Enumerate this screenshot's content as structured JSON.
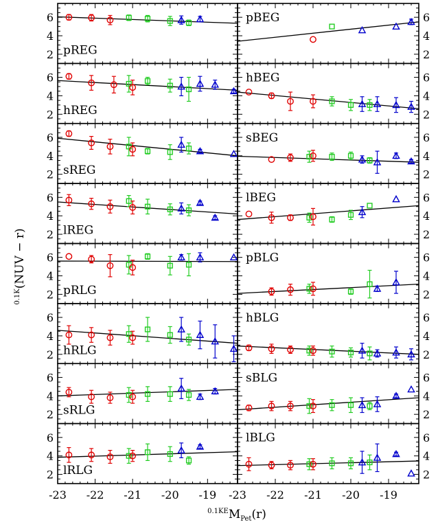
{
  "figure": {
    "ylabel_text": "(NUV − r)",
    "ylabel_sup": "0.1K",
    "xlabel_text": "(r)",
    "xlabel_pre": "0.1KE",
    "xlabel_M": "M",
    "xlabel_sub": "Pet"
  },
  "colors": {
    "red": "#e00000",
    "green": "#22cc22",
    "blue": "#0000cc",
    "line": "#000000"
  },
  "chart_data": [
    {
      "type": "scatter",
      "label": "pREG",
      "xlim": [
        -23,
        -18.2
      ],
      "ylim": [
        1,
        7.5
      ],
      "fit": [
        [
          -23,
          6.05
        ],
        [
          -18.2,
          5.35
        ]
      ],
      "points": [
        [
          -22.7,
          6.0,
          0.3,
          "red"
        ],
        [
          -22.1,
          5.95,
          0.35,
          "red"
        ],
        [
          -21.6,
          5.7,
          0.5,
          "red"
        ],
        [
          -21.1,
          5.95,
          0.3,
          "green"
        ],
        [
          -20.6,
          5.85,
          0.35,
          "green"
        ],
        [
          -20.0,
          5.6,
          0.5,
          "green"
        ],
        [
          -19.7,
          5.7,
          0.45,
          "blue"
        ],
        [
          -19.5,
          5.4,
          0.3,
          "green"
        ],
        [
          -19.2,
          5.8,
          0.3,
          "blue"
        ]
      ]
    },
    {
      "type": "scatter",
      "label": "pBEG",
      "xlim": [
        -23,
        -18.2
      ],
      "ylim": [
        1,
        7.5
      ],
      "fit": [
        [
          -23,
          3.4
        ],
        [
          -18.2,
          5.5
        ]
      ],
      "points": [
        [
          -21.0,
          3.6,
          0.1,
          "red"
        ],
        [
          -20.5,
          5.0,
          0.1,
          "green"
        ],
        [
          -19.7,
          4.6,
          0.1,
          "blue"
        ],
        [
          -18.8,
          5.0,
          0.1,
          "blue"
        ],
        [
          -18.4,
          5.5,
          0.3,
          "blue"
        ]
      ]
    },
    {
      "type": "scatter",
      "label": "hREG",
      "xlim": [
        -23,
        -18.2
      ],
      "ylim": [
        1,
        7.5
      ],
      "fit": [
        [
          -23,
          5.65
        ],
        [
          -18.2,
          4.6
        ]
      ],
      "points": [
        [
          -22.7,
          6.1,
          0.3,
          "red"
        ],
        [
          -22.1,
          5.4,
          0.8,
          "red"
        ],
        [
          -21.5,
          5.2,
          0.9,
          "red"
        ],
        [
          -21.1,
          5.3,
          0.9,
          "green"
        ],
        [
          -21.0,
          4.9,
          0.8,
          "red"
        ],
        [
          -20.6,
          5.6,
          0.4,
          "green"
        ],
        [
          -20.0,
          5.1,
          0.7,
          "green"
        ],
        [
          -19.7,
          5.0,
          1.0,
          "blue"
        ],
        [
          -19.5,
          4.7,
          1.3,
          "green"
        ],
        [
          -19.2,
          5.3,
          0.8,
          "blue"
        ],
        [
          -18.8,
          5.2,
          0.5,
          "blue"
        ],
        [
          -18.3,
          4.5,
          0.2,
          "blue"
        ]
      ]
    },
    {
      "type": "scatter",
      "label": "hBEG",
      "xlim": [
        -23,
        -18.2
      ],
      "ylim": [
        1,
        7.5
      ],
      "fit": [
        [
          -23,
          4.4
        ],
        [
          -18.2,
          2.6
        ]
      ],
      "points": [
        [
          -22.7,
          4.4,
          0.1,
          "red"
        ],
        [
          -22.1,
          4.0,
          0.3,
          "red"
        ],
        [
          -21.6,
          3.4,
          1.0,
          "red"
        ],
        [
          -21.0,
          3.4,
          0.7,
          "red"
        ],
        [
          -20.5,
          3.4,
          0.5,
          "green"
        ],
        [
          -20.0,
          3.0,
          0.6,
          "green"
        ],
        [
          -19.7,
          3.1,
          0.8,
          "blue"
        ],
        [
          -19.5,
          3.0,
          0.6,
          "green"
        ],
        [
          -19.3,
          3.1,
          0.8,
          "blue"
        ],
        [
          -18.8,
          3.0,
          0.8,
          "blue"
        ],
        [
          -18.4,
          2.8,
          0.6,
          "blue"
        ]
      ]
    },
    {
      "type": "scatter",
      "label": "sREG",
      "xlim": [
        -23,
        -18.2
      ],
      "ylim": [
        1,
        7.5
      ],
      "fit": [
        [
          -23,
          5.9
        ],
        [
          -18.2,
          4.0
        ]
      ],
      "points": [
        [
          -22.7,
          6.4,
          0.3,
          "red"
        ],
        [
          -22.1,
          5.4,
          0.7,
          "red"
        ],
        [
          -21.6,
          5.0,
          0.8,
          "red"
        ],
        [
          -21.1,
          5.0,
          1.0,
          "green"
        ],
        [
          -21.0,
          4.7,
          0.7,
          "red"
        ],
        [
          -20.6,
          4.5,
          0.3,
          "green"
        ],
        [
          -20.0,
          4.4,
          0.8,
          "green"
        ],
        [
          -19.7,
          5.2,
          0.8,
          "blue"
        ],
        [
          -19.5,
          4.8,
          0.6,
          "green"
        ],
        [
          -19.2,
          4.5,
          0.2,
          "blue"
        ],
        [
          -18.3,
          4.2,
          0.1,
          "blue"
        ]
      ]
    },
    {
      "type": "scatter",
      "label": "sBEG",
      "xlim": [
        -23,
        -18.2
      ],
      "ylim": [
        1,
        7.5
      ],
      "fit": [
        [
          -23,
          3.95
        ],
        [
          -18.2,
          3.3
        ]
      ],
      "points": [
        [
          -22.1,
          3.6,
          0.1,
          "red"
        ],
        [
          -21.6,
          3.8,
          0.4,
          "red"
        ],
        [
          -21.1,
          3.9,
          0.6,
          "green"
        ],
        [
          -21.0,
          4.0,
          0.6,
          "red"
        ],
        [
          -20.5,
          3.9,
          0.4,
          "green"
        ],
        [
          -20.0,
          4.0,
          0.4,
          "green"
        ],
        [
          -19.7,
          3.6,
          0.4,
          "blue"
        ],
        [
          -19.5,
          3.5,
          0.3,
          "green"
        ],
        [
          -19.3,
          3.3,
          1.2,
          "blue"
        ],
        [
          -18.8,
          4.0,
          0.3,
          "blue"
        ],
        [
          -18.4,
          3.4,
          0.2,
          "blue"
        ]
      ]
    },
    {
      "type": "scatter",
      "label": "lREG",
      "xlim": [
        -23,
        -18.2
      ],
      "ylim": [
        1,
        7.5
      ],
      "fit": [
        [
          -23,
          5.5
        ],
        [
          -18.2,
          4.2
        ]
      ],
      "points": [
        [
          -22.7,
          5.7,
          0.6,
          "red"
        ],
        [
          -22.1,
          5.3,
          0.6,
          "red"
        ],
        [
          -21.6,
          5.0,
          0.7,
          "red"
        ],
        [
          -21.1,
          5.6,
          0.6,
          "green"
        ],
        [
          -21.0,
          4.9,
          0.7,
          "red"
        ],
        [
          -20.6,
          5.0,
          0.8,
          "green"
        ],
        [
          -20.0,
          4.7,
          0.6,
          "green"
        ],
        [
          -19.7,
          4.8,
          0.6,
          "blue"
        ],
        [
          -19.5,
          4.6,
          0.6,
          "green"
        ],
        [
          -19.2,
          5.4,
          0.2,
          "blue"
        ],
        [
          -18.8,
          3.8,
          0.2,
          "blue"
        ]
      ]
    },
    {
      "type": "scatter",
      "label": "lBEG",
      "xlim": [
        -23,
        -18.2
      ],
      "ylim": [
        1,
        7.5
      ],
      "fit": [
        [
          -23,
          3.6
        ],
        [
          -18.2,
          5.1
        ]
      ],
      "points": [
        [
          -22.7,
          4.2,
          0.1,
          "red"
        ],
        [
          -22.1,
          3.8,
          0.6,
          "red"
        ],
        [
          -21.6,
          3.8,
          0.3,
          "red"
        ],
        [
          -21.1,
          3.8,
          0.5,
          "green"
        ],
        [
          -21.0,
          3.9,
          0.9,
          "red"
        ],
        [
          -20.5,
          3.6,
          0.3,
          "green"
        ],
        [
          -20.0,
          4.1,
          0.5,
          "green"
        ],
        [
          -19.7,
          4.4,
          0.6,
          "blue"
        ],
        [
          -19.5,
          5.1,
          0.1,
          "green"
        ],
        [
          -18.8,
          5.8,
          0.1,
          "blue"
        ]
      ]
    },
    {
      "type": "scatter",
      "label": "pRLG",
      "xlim": [
        -23,
        -18.2
      ],
      "ylim": [
        1,
        7.5
      ],
      "fit": [
        [
          -23,
          5.6
        ],
        [
          -18.2,
          5.55
        ]
      ],
      "points": [
        [
          -22.7,
          6.1,
          0.1,
          "red"
        ],
        [
          -22.1,
          5.8,
          0.4,
          "red"
        ],
        [
          -21.6,
          5.1,
          1.2,
          "red"
        ],
        [
          -21.1,
          5.2,
          1.0,
          "green"
        ],
        [
          -21.0,
          4.9,
          0.8,
          "red"
        ],
        [
          -20.6,
          6.1,
          0.3,
          "green"
        ],
        [
          -20.0,
          5.1,
          1.0,
          "green"
        ],
        [
          -19.7,
          6.0,
          0.3,
          "blue"
        ],
        [
          -19.5,
          5.2,
          1.2,
          "green"
        ],
        [
          -19.2,
          6.0,
          0.5,
          "blue"
        ],
        [
          -18.3,
          6.0,
          0.1,
          "blue"
        ]
      ]
    },
    {
      "type": "scatter",
      "label": "pBLG",
      "xlim": [
        -23,
        -18.2
      ],
      "ylim": [
        1,
        7.5
      ],
      "fit": [
        [
          -23,
          2.1
        ],
        [
          -18.2,
          3.1
        ]
      ],
      "points": [
        [
          -22.1,
          2.3,
          0.4,
          "red"
        ],
        [
          -21.6,
          2.5,
          0.6,
          "red"
        ],
        [
          -21.1,
          2.6,
          0.5,
          "green"
        ],
        [
          -21.0,
          2.6,
          0.7,
          "red"
        ],
        [
          -20.0,
          2.3,
          0.3,
          "green"
        ],
        [
          -19.5,
          3.1,
          1.5,
          "green"
        ],
        [
          -19.3,
          2.6,
          0.3,
          "blue"
        ],
        [
          -18.8,
          3.3,
          1.2,
          "blue"
        ]
      ]
    },
    {
      "type": "scatter",
      "label": "hRLG",
      "xlim": [
        -23,
        -18.2
      ],
      "ylim": [
        1,
        7.5
      ],
      "fit": [
        [
          -23,
          4.6
        ],
        [
          -18.2,
          3.2
        ]
      ],
      "points": [
        [
          -22.7,
          4.1,
          1.0,
          "red"
        ],
        [
          -22.1,
          4.1,
          0.8,
          "red"
        ],
        [
          -21.6,
          3.8,
          0.8,
          "red"
        ],
        [
          -21.1,
          4.2,
          0.9,
          "green"
        ],
        [
          -21.0,
          3.8,
          0.7,
          "red"
        ],
        [
          -20.6,
          4.7,
          1.3,
          "green"
        ],
        [
          -20.0,
          4.1,
          0.9,
          "green"
        ],
        [
          -19.7,
          4.7,
          1.3,
          "blue"
        ],
        [
          -19.5,
          3.6,
          0.6,
          "green"
        ],
        [
          -19.2,
          4.1,
          1.5,
          "blue"
        ],
        [
          -18.8,
          3.4,
          1.8,
          "blue"
        ],
        [
          -18.3,
          2.6,
          1.4,
          "blue"
        ]
      ]
    },
    {
      "type": "scatter",
      "label": "hBLG",
      "xlim": [
        -23,
        -18.2
      ],
      "ylim": [
        1,
        7.5
      ],
      "fit": [
        [
          -23,
          2.9
        ],
        [
          -18.2,
          2.0
        ]
      ],
      "points": [
        [
          -22.7,
          2.7,
          0.3,
          "red"
        ],
        [
          -22.1,
          2.6,
          0.5,
          "red"
        ],
        [
          -21.6,
          2.5,
          0.4,
          "red"
        ],
        [
          -21.1,
          2.4,
          0.5,
          "green"
        ],
        [
          -21.0,
          2.4,
          0.5,
          "red"
        ],
        [
          -20.5,
          2.3,
          0.6,
          "green"
        ],
        [
          -20.0,
          2.2,
          0.5,
          "green"
        ],
        [
          -19.7,
          2.4,
          0.8,
          "blue"
        ],
        [
          -19.5,
          2.1,
          0.7,
          "green"
        ],
        [
          -19.3,
          2.1,
          0.4,
          "blue"
        ],
        [
          -18.8,
          2.2,
          0.6,
          "blue"
        ],
        [
          -18.4,
          2.0,
          0.6,
          "blue"
        ]
      ]
    },
    {
      "type": "scatter",
      "label": "sRLG",
      "xlim": [
        -23,
        -18.2
      ],
      "ylim": [
        1,
        7.5
      ],
      "fit": [
        [
          -23,
          4.0
        ],
        [
          -18.2,
          4.7
        ]
      ],
      "points": [
        [
          -22.7,
          4.4,
          0.5,
          "red"
        ],
        [
          -22.1,
          3.9,
          0.7,
          "red"
        ],
        [
          -21.6,
          3.8,
          0.6,
          "red"
        ],
        [
          -21.1,
          4.1,
          0.8,
          "green"
        ],
        [
          -21.0,
          3.9,
          0.7,
          "red"
        ],
        [
          -20.6,
          4.2,
          0.8,
          "green"
        ],
        [
          -20.0,
          4.2,
          0.8,
          "green"
        ],
        [
          -19.7,
          4.8,
          1.1,
          "blue"
        ],
        [
          -19.5,
          4.1,
          0.6,
          "green"
        ],
        [
          -19.2,
          3.9,
          0.3,
          "blue"
        ],
        [
          -18.8,
          4.5,
          0.3,
          "blue"
        ]
      ]
    },
    {
      "type": "scatter",
      "label": "sBLG",
      "xlim": [
        -23,
        -18.2
      ],
      "ylim": [
        1,
        7.5
      ],
      "fit": [
        [
          -23,
          2.5
        ],
        [
          -18.2,
          3.8
        ]
      ],
      "points": [
        [
          -22.7,
          2.7,
          0.3,
          "red"
        ],
        [
          -22.1,
          2.9,
          0.5,
          "red"
        ],
        [
          -21.6,
          2.9,
          0.5,
          "red"
        ],
        [
          -21.1,
          2.9,
          0.8,
          "green"
        ],
        [
          -21.0,
          2.9,
          0.7,
          "red"
        ],
        [
          -20.5,
          3.0,
          0.6,
          "green"
        ],
        [
          -20.0,
          3.0,
          0.8,
          "green"
        ],
        [
          -19.7,
          3.0,
          0.8,
          "blue"
        ],
        [
          -19.5,
          2.9,
          0.4,
          "green"
        ],
        [
          -19.3,
          3.1,
          0.8,
          "blue"
        ],
        [
          -18.8,
          4.0,
          0.2,
          "blue"
        ],
        [
          -18.4,
          4.7,
          0.1,
          "blue"
        ]
      ]
    },
    {
      "type": "scatter",
      "label": "lRLG",
      "xlim": [
        -23,
        -18.2
      ],
      "ylim": [
        1,
        7.5
      ],
      "fit": [
        [
          -23,
          3.85
        ],
        [
          -18.2,
          4.45
        ]
      ],
      "points": [
        [
          -22.7,
          4.1,
          0.8,
          "red"
        ],
        [
          -22.1,
          4.1,
          0.7,
          "red"
        ],
        [
          -21.6,
          3.9,
          0.7,
          "red"
        ],
        [
          -21.1,
          4.0,
          0.8,
          "green"
        ],
        [
          -21.0,
          4.0,
          0.6,
          "red"
        ],
        [
          -20.6,
          4.4,
          0.9,
          "green"
        ],
        [
          -20.0,
          4.2,
          0.8,
          "green"
        ],
        [
          -19.7,
          4.6,
          0.8,
          "blue"
        ],
        [
          -19.5,
          3.5,
          0.4,
          "green"
        ],
        [
          -19.2,
          5.0,
          0.2,
          "blue"
        ]
      ]
    },
    {
      "type": "scatter",
      "label": "lBLG",
      "xlim": [
        -23,
        -18.2
      ],
      "ylim": [
        1,
        7.5
      ],
      "fit": [
        [
          -23,
          2.95
        ],
        [
          -18.2,
          3.45
        ]
      ],
      "points": [
        [
          -22.7,
          3.1,
          0.7,
          "red"
        ],
        [
          -22.1,
          3.0,
          0.4,
          "red"
        ],
        [
          -21.6,
          3.0,
          0.5,
          "red"
        ],
        [
          -21.1,
          3.1,
          0.6,
          "green"
        ],
        [
          -21.0,
          3.1,
          0.6,
          "red"
        ],
        [
          -20.5,
          3.2,
          0.6,
          "green"
        ],
        [
          -20.0,
          3.2,
          0.6,
          "green"
        ],
        [
          -19.7,
          3.3,
          1.2,
          "blue"
        ],
        [
          -19.5,
          3.3,
          0.8,
          "green"
        ],
        [
          -19.3,
          3.8,
          1.5,
          "blue"
        ],
        [
          -18.8,
          4.2,
          0.2,
          "blue"
        ],
        [
          -18.4,
          2.1,
          0.1,
          "blue"
        ]
      ]
    }
  ],
  "axes": {
    "y_ticks_major": [
      2,
      4,
      6
    ],
    "x_ticks_labeled_left": [
      "-23",
      "-22",
      "-21",
      "-20",
      "-19"
    ],
    "x_ticks_labeled_right": [
      "-23",
      "-22",
      "-21",
      "-20",
      "-19"
    ],
    "x_ticks_values": [
      -23,
      -22,
      -21,
      -20,
      -19
    ]
  }
}
